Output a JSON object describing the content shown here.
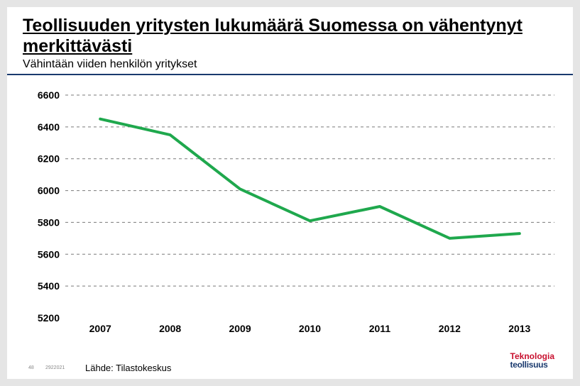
{
  "header": {
    "title": "Teollisuuden yritysten lukumäärä Suomessa on vähentynyt merkittävästi",
    "subtitle": "Vähintään viiden henkilön yritykset"
  },
  "chart": {
    "type": "line",
    "background_color": "#ffffff",
    "grid_color": "#7a7a7a",
    "grid_dash": "4,4",
    "axis_font_size": 14,
    "axis_font_weight": "bold",
    "axis_color": "#000000",
    "line_color": "#1fa84d",
    "line_width": 4,
    "ylim": [
      5200,
      6600
    ],
    "ytick_step": 200,
    "y_ticks": [
      5200,
      5400,
      5600,
      5800,
      6000,
      6200,
      6400,
      6600
    ],
    "x_labels": [
      "2007",
      "2008",
      "2009",
      "2010",
      "2011",
      "2012",
      "2013"
    ],
    "values": [
      6450,
      6350,
      6010,
      5810,
      5900,
      5700,
      5730
    ],
    "plot_left_pad": 54,
    "plot_right_pad": 6,
    "plot_top_pad": 6,
    "plot_bottom_pad": 26
  },
  "footer": {
    "page": "48",
    "date": "2922021",
    "source": "Lähde: Tilastokeskus",
    "logo_line1": "Teknologia",
    "logo_line2": "teollisuus"
  }
}
